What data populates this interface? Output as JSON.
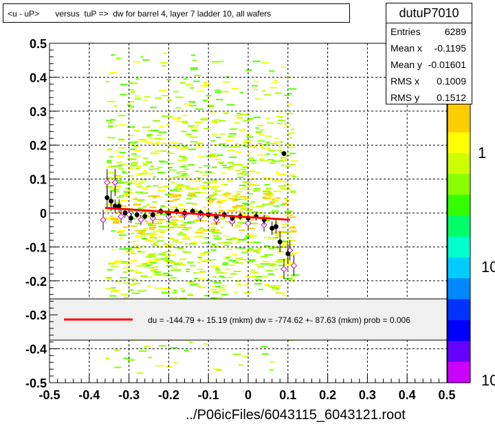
{
  "title": "<u - uP>       versus  tuP =>  dw for barrel 4, layer 7 ladder 10, all wafers",
  "stats": {
    "name": "dutuP7010",
    "rows": [
      {
        "label": "Entries",
        "value": "6289"
      },
      {
        "label": "Mean x",
        "value": "-0.1195"
      },
      {
        "label": "Mean y",
        "value": "-0.01601"
      },
      {
        "label": "RMS x",
        "value": "0.1009"
      },
      {
        "label": "RMS y",
        "value": "0.1512"
      }
    ]
  },
  "legend": {
    "text": "du = -144.79 +- 15.19 (mkm) dw = -774.62 +- 87.63 (mkm) prob = 0.006"
  },
  "footer": "../P06icFiles/6043115_6043121.root",
  "colors": {
    "fit": "#ff0000",
    "profile": "#000000",
    "alt_profile": "#cc00cc",
    "background": "#ffffff"
  },
  "chart_data": {
    "type": "scatter",
    "xlim": [
      -0.5,
      0.5
    ],
    "ylim": [
      -0.5,
      0.5
    ],
    "grid": true,
    "x_ticks": [
      "-0.5",
      "-0.4",
      "-0.3",
      "-0.2",
      "-0.1",
      "0",
      "0.1",
      "0.2",
      "0.3",
      "0.4",
      "0.5"
    ],
    "y_ticks": [
      "-0.5",
      "-0.4",
      "-0.3",
      "-0.2",
      "-0.1",
      "0",
      "0.1",
      "0.2",
      "0.3",
      "0.4",
      "0.5"
    ],
    "color_scale_labels": [
      "1",
      "10",
      "10"
    ],
    "fit_line": {
      "x": [
        -0.36,
        0.105
      ],
      "y": [
        0.015,
        -0.02
      ]
    },
    "profile_black": [
      {
        "x": -0.355,
        "y": 0.045,
        "e": 0.03
      },
      {
        "x": -0.345,
        "y": 0.035,
        "e": 0.03
      },
      {
        "x": -0.335,
        "y": 0.02,
        "e": 0.02
      },
      {
        "x": -0.325,
        "y": 0.02,
        "e": 0.02
      },
      {
        "x": -0.31,
        "y": 0.0,
        "e": 0.015
      },
      {
        "x": -0.295,
        "y": -0.015,
        "e": 0.015
      },
      {
        "x": -0.28,
        "y": -0.005,
        "e": 0.01
      },
      {
        "x": -0.26,
        "y": -0.01,
        "e": 0.01
      },
      {
        "x": -0.24,
        "y": -0.005,
        "e": 0.01
      },
      {
        "x": -0.22,
        "y": 0.005,
        "e": 0.01
      },
      {
        "x": -0.2,
        "y": 0.0,
        "e": 0.01
      },
      {
        "x": -0.18,
        "y": 0.005,
        "e": 0.01
      },
      {
        "x": -0.16,
        "y": 0.0,
        "e": 0.01
      },
      {
        "x": -0.14,
        "y": 0.005,
        "e": 0.01
      },
      {
        "x": -0.12,
        "y": 0.0,
        "e": 0.01
      },
      {
        "x": -0.1,
        "y": -0.005,
        "e": 0.01
      },
      {
        "x": -0.08,
        "y": -0.01,
        "e": 0.01
      },
      {
        "x": -0.06,
        "y": -0.005,
        "e": 0.01
      },
      {
        "x": -0.04,
        "y": -0.015,
        "e": 0.01
      },
      {
        "x": -0.02,
        "y": -0.01,
        "e": 0.01
      },
      {
        "x": 0.0,
        "y": -0.015,
        "e": 0.012
      },
      {
        "x": 0.02,
        "y": -0.01,
        "e": 0.012
      },
      {
        "x": 0.04,
        "y": -0.02,
        "e": 0.015
      },
      {
        "x": 0.06,
        "y": -0.045,
        "e": 0.02
      },
      {
        "x": 0.07,
        "y": -0.04,
        "e": 0.02
      },
      {
        "x": 0.08,
        "y": -0.085,
        "e": 0.03
      },
      {
        "x": 0.09,
        "y": 0.175,
        "e": 0.0
      },
      {
        "x": 0.1,
        "y": -0.12,
        "e": 0.03
      }
    ],
    "profile_magenta": [
      {
        "x": -0.365,
        "y": -0.02,
        "e": 0.03
      },
      {
        "x": -0.355,
        "y": 0.09,
        "e": 0.04
      },
      {
        "x": -0.335,
        "y": 0.09,
        "e": 0.04
      },
      {
        "x": -0.32,
        "y": -0.01,
        "e": 0.02
      },
      {
        "x": -0.3,
        "y": -0.005,
        "e": 0.015
      },
      {
        "x": -0.27,
        "y": -0.02,
        "e": 0.015
      },
      {
        "x": -0.24,
        "y": -0.015,
        "e": 0.015
      },
      {
        "x": -0.2,
        "y": -0.01,
        "e": 0.015
      },
      {
        "x": -0.16,
        "y": -0.005,
        "e": 0.015
      },
      {
        "x": -0.12,
        "y": -0.01,
        "e": 0.015
      },
      {
        "x": -0.08,
        "y": -0.02,
        "e": 0.015
      },
      {
        "x": -0.04,
        "y": -0.025,
        "e": 0.015
      },
      {
        "x": 0.0,
        "y": -0.03,
        "e": 0.02
      },
      {
        "x": 0.04,
        "y": -0.035,
        "e": 0.02
      },
      {
        "x": 0.09,
        "y": -0.165,
        "e": 0.03
      },
      {
        "x": 0.105,
        "y": -0.11,
        "e": 0.03
      },
      {
        "x": 0.115,
        "y": -0.155,
        "e": 0.03
      }
    ]
  }
}
